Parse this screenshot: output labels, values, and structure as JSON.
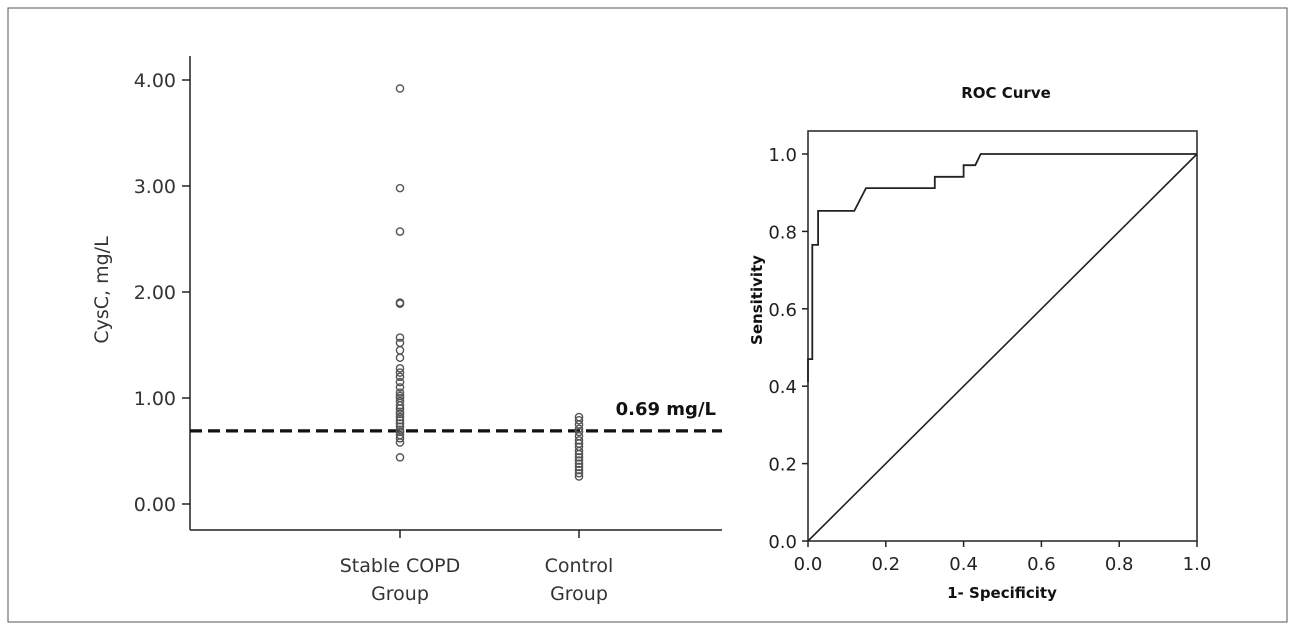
{
  "chart_data": [
    {
      "type": "scatter",
      "ylabel": "CysC, mg/L",
      "ylim": [
        0,
        4.0
      ],
      "yticks": [
        "0.00",
        "1.00",
        "2.00",
        "3.00",
        "4.00"
      ],
      "categories": [
        {
          "lines": [
            "Stable COPD",
            "Group"
          ]
        },
        {
          "lines": [
            "Control",
            "Group"
          ]
        }
      ],
      "series": [
        {
          "values": [
            3.92,
            2.98,
            2.57,
            1.9,
            1.89,
            1.57,
            1.52,
            1.45,
            1.38,
            1.28,
            1.24,
            1.2,
            1.15,
            1.1,
            1.05,
            1.02,
            1.0,
            0.97,
            0.93,
            0.9,
            0.87,
            0.85,
            0.82,
            0.79,
            0.76,
            0.73,
            0.7,
            0.68,
            0.65,
            0.62,
            0.58,
            0.44
          ]
        },
        {
          "values": [
            0.82,
            0.79,
            0.75,
            0.71,
            0.68,
            0.64,
            0.6,
            0.57,
            0.54,
            0.5,
            0.47,
            0.44,
            0.41,
            0.38,
            0.35,
            0.32,
            0.29,
            0.26
          ]
        }
      ],
      "cutoff": {
        "value": 0.69,
        "label": "0.69 mg/L"
      }
    },
    {
      "type": "line",
      "title": "ROC Curve",
      "xlabel": "1- Specificity",
      "ylabel": "Sensitivity",
      "xlim": [
        0,
        1.0
      ],
      "ylim": [
        0,
        1.0
      ],
      "xticks": [
        "0.0",
        "0.2",
        "0.4",
        "0.6",
        "0.8",
        "1.0"
      ],
      "yticks": [
        "0.0",
        "0.2",
        "0.4",
        "0.6",
        "0.8",
        "1.0"
      ],
      "roc": [
        [
          0.0,
          0.41
        ],
        [
          0.0,
          0.47
        ],
        [
          0.011,
          0.47
        ],
        [
          0.011,
          0.53
        ],
        [
          0.011,
          0.765
        ],
        [
          0.026,
          0.765
        ],
        [
          0.026,
          0.853
        ],
        [
          0.119,
          0.853
        ],
        [
          0.149,
          0.912
        ],
        [
          0.326,
          0.912
        ],
        [
          0.326,
          0.941
        ],
        [
          0.4,
          0.941
        ],
        [
          0.4,
          0.971
        ],
        [
          0.43,
          0.971
        ],
        [
          0.444,
          1.0
        ],
        [
          1.0,
          1.0
        ]
      ],
      "reference": [
        [
          0.0,
          0.0
        ],
        [
          1.0,
          1.0
        ]
      ]
    }
  ]
}
